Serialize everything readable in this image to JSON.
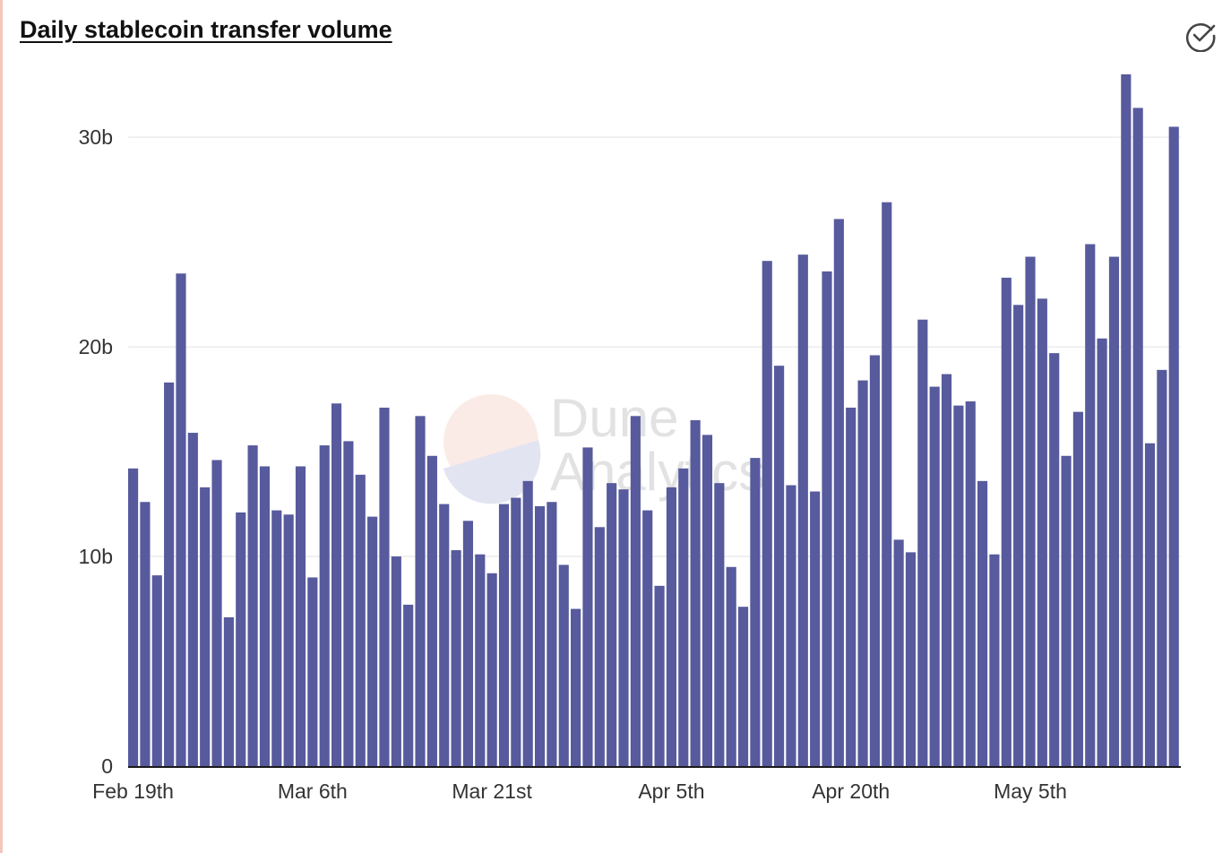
{
  "title": "Daily stablecoin transfer volume",
  "icons": {
    "status": "check-circle-icon"
  },
  "watermark": {
    "line1": "Dune",
    "line2": "Analytics"
  },
  "colors": {
    "bar": "#575a9c",
    "grid": "#ececec",
    "axis": "#1a1a1a",
    "accent_edge": "#f3c7bb"
  },
  "chart_data": {
    "type": "bar",
    "title": "Daily stablecoin transfer volume",
    "xlabel": "",
    "ylabel": "",
    "ylim": [
      0,
      33000000000
    ],
    "grid": true,
    "legend": "none",
    "y_ticks": [
      {
        "value": 0,
        "label": "0"
      },
      {
        "value": 10000000000,
        "label": "10b"
      },
      {
        "value": 20000000000,
        "label": "20b"
      },
      {
        "value": 30000000000,
        "label": "30b"
      }
    ],
    "x_ticks": [
      {
        "index": 0,
        "label": "Feb 19th"
      },
      {
        "index": 15,
        "label": "Mar 6th"
      },
      {
        "index": 30,
        "label": "Mar 21st"
      },
      {
        "index": 45,
        "label": "Apr 5th"
      },
      {
        "index": 60,
        "label": "Apr 20th"
      },
      {
        "index": 75,
        "label": "May 5th"
      }
    ],
    "start_date": "Feb 19th",
    "values": [
      14.2,
      12.6,
      9.1,
      18.3,
      23.5,
      15.9,
      13.3,
      14.6,
      7.1,
      12.1,
      15.3,
      14.3,
      12.2,
      12.0,
      14.3,
      9.0,
      15.3,
      17.3,
      15.5,
      13.9,
      11.9,
      17.1,
      10.0,
      7.7,
      16.7,
      14.8,
      12.5,
      10.3,
      11.7,
      10.1,
      9.2,
      12.5,
      12.8,
      13.6,
      12.4,
      12.6,
      9.6,
      7.5,
      15.2,
      11.4,
      13.5,
      13.2,
      16.7,
      12.2,
      8.6,
      13.3,
      14.2,
      16.5,
      15.8,
      13.5,
      9.5,
      7.6,
      14.7,
      24.1,
      19.1,
      13.4,
      24.4,
      13.1,
      23.6,
      26.1,
      17.1,
      18.4,
      19.6,
      26.9,
      10.8,
      10.2,
      21.3,
      18.1,
      18.7,
      17.2,
      17.4,
      13.6,
      10.1,
      23.3,
      22.0,
      24.3,
      22.3,
      19.7,
      14.8,
      16.9,
      24.9,
      20.4,
      24.3,
      33.0,
      31.4,
      15.4,
      18.9,
      30.5
    ],
    "value_unit": "billions"
  }
}
